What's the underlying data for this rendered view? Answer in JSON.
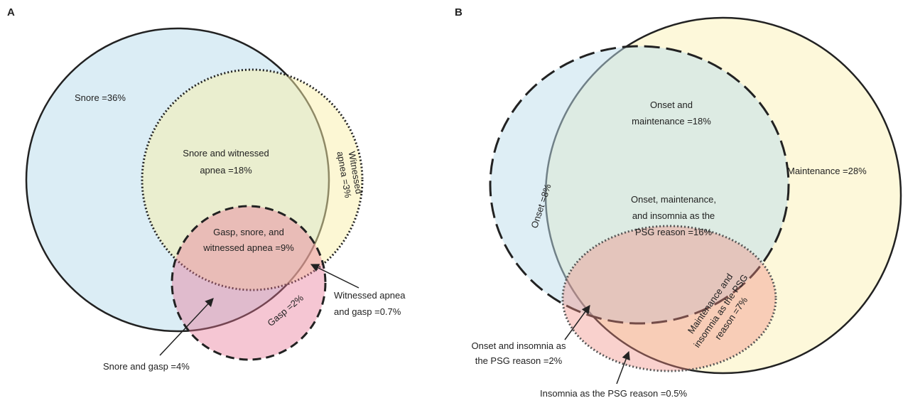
{
  "panel_a": {
    "label": "A",
    "snore": [
      "Snore =36%"
    ],
    "snore_witnessed": [
      "Snore and witnessed",
      "apnea =18%"
    ],
    "witnessed": [
      "Witnessed",
      "apnea =3%"
    ],
    "gasp_snore_witnessed": [
      "Gasp, snore, and",
      "witnessed apnea =9%"
    ],
    "gasp": [
      "Gasp =2%"
    ],
    "witnessed_gasp": [
      "Witnessed apnea",
      "and gasp =0.7%"
    ],
    "snore_gasp": [
      "Snore and gasp =4%"
    ]
  },
  "panel_b": {
    "label": "B",
    "onset": [
      "Onset =8%"
    ],
    "onset_maintenance": [
      "Onset and",
      "maintenance =18%"
    ],
    "maintenance": [
      "Maintenance =28%"
    ],
    "all_three": [
      "Onset, maintenance,",
      "and insomnia as the",
      "PSG reason =16%"
    ],
    "maintenance_insomnia": [
      "Maintenance and",
      "insomnia as the PSG",
      "reason =7%"
    ],
    "onset_insomnia": [
      "Onset and insomnia as",
      "the PSG reason =2%"
    ],
    "insomnia": [
      "Insomnia as the PSG reason =0.5%"
    ]
  }
}
